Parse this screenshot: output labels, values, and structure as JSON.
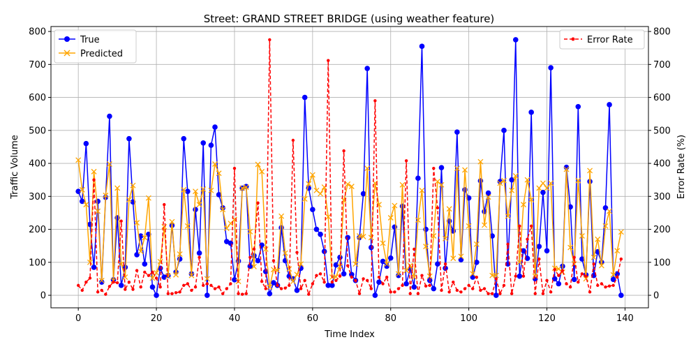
{
  "chart_data": {
    "type": "line",
    "title": "Street: GRAND STREET BRIDGE (using weather feature)",
    "xlabel": "Time Index",
    "ylabel": "Traffic Volume",
    "y2label": "Error Rate (%)",
    "xlim": [
      -7,
      146
    ],
    "ylim": [
      -38,
      815
    ],
    "y2lim": [
      -38,
      815
    ],
    "xticks": [
      0,
      20,
      40,
      60,
      80,
      100,
      120,
      140
    ],
    "yticks": [
      0,
      100,
      200,
      300,
      400,
      500,
      600,
      700,
      800
    ],
    "grid": true,
    "legend_left": "top-left",
    "legend_right": "top-right",
    "colors": {
      "true": "#0000ff",
      "predicted": "#ffa500",
      "error": "#ff0000"
    },
    "series": [
      {
        "name": "True",
        "axis": "left",
        "marker": "circle",
        "values": [
          315,
          285,
          460,
          215,
          85,
          285,
          40,
          297,
          543,
          47,
          235,
          30,
          85,
          475,
          283,
          123,
          180,
          95,
          185,
          25,
          0,
          82,
          55,
          60,
          212,
          70,
          110,
          475,
          315,
          65,
          260,
          128,
          462,
          0,
          455,
          510,
          305,
          265,
          163,
          158,
          47,
          104,
          325,
          330,
          88,
          120,
          105,
          152,
          72,
          5,
          38,
          30,
          205,
          105,
          58,
          50,
          15,
          82,
          600,
          325,
          260,
          200,
          185,
          133,
          30,
          30,
          92,
          115,
          65,
          175,
          63,
          45,
          175,
          308,
          688,
          145,
          0,
          40,
          103,
          88,
          113,
          207,
          60,
          270,
          35,
          80,
          25,
          355,
          755,
          200,
          45,
          20,
          95,
          387,
          82,
          225,
          195,
          495,
          108,
          320,
          295,
          55,
          100,
          347,
          254,
          310,
          180,
          0,
          345,
          500,
          95,
          350,
          775,
          58,
          135,
          112,
          555,
          50,
          148,
          312,
          135,
          690,
          50,
          35,
          88,
          388,
          268,
          48,
          572,
          110,
          62,
          345,
          60,
          132,
          100,
          265,
          578,
          48,
          65,
          0
        ]
      },
      {
        "name": "Predicted",
        "axis": "left",
        "marker": "x",
        "values": [
          410,
          320,
          275,
          100,
          375,
          255,
          45,
          303,
          398,
          45,
          325,
          95,
          55,
          290,
          333,
          220,
          133,
          175,
          295,
          52,
          68,
          102,
          208,
          58,
          223,
          62,
          125,
          320,
          210,
          60,
          315,
          275,
          322,
          50,
          318,
          398,
          370,
          260,
          203,
          218,
          230,
          42,
          325,
          328,
          193,
          87,
          397,
          375,
          140,
          25,
          78,
          75,
          240,
          128,
          80,
          42,
          63,
          95,
          292,
          338,
          365,
          318,
          308,
          328,
          238,
          55,
          56,
          88,
          288,
          337,
          330,
          95,
          180,
          178,
          385,
          175,
          340,
          275,
          158,
          95,
          235,
          272,
          65,
          335,
          75,
          90,
          55,
          228,
          318,
          148,
          58,
          180,
          345,
          335,
          172,
          262,
          112,
          385,
          118,
          380,
          210,
          65,
          155,
          405,
          213,
          298,
          60,
          60,
          340,
          348,
          240,
          318,
          362,
          100,
          275,
          350,
          290,
          58,
          325,
          340,
          325,
          340,
          82,
          80,
          70,
          382,
          145,
          95,
          348,
          180,
          50,
          378,
          115,
          170,
          90,
          210,
          255,
          62,
          135,
          192
        ]
      },
      {
        "name": "Error Rate",
        "axis": "right",
        "marker": "dot",
        "linestyle": "dashed",
        "values": [
          30,
          15,
          40,
          52,
          350,
          10,
          15,
          3,
          27,
          40,
          38,
          225,
          18,
          40,
          18,
          75,
          25,
          70,
          60,
          70,
          52,
          25,
          275,
          5,
          5,
          8,
          10,
          30,
          35,
          15,
          25,
          115,
          30,
          35,
          30,
          20,
          25,
          5,
          20,
          35,
          385,
          5,
          3,
          5,
          115,
          140,
          280,
          42,
          20,
          775,
          105,
          30,
          20,
          22,
          30,
          470,
          130,
          20,
          45,
          3,
          35,
          60,
          65,
          40,
          712,
          40,
          45,
          58,
          438,
          90,
          55,
          45,
          5,
          50,
          45,
          20,
          590,
          55,
          35,
          55,
          10,
          10,
          20,
          30,
          408,
          5,
          140,
          5,
          60,
          28,
          30,
          385,
          265,
          15,
          95,
          10,
          40,
          15,
          10,
          20,
          30,
          20,
          55,
          15,
          20,
          5,
          5,
          50,
          5,
          30,
          155,
          5,
          58,
          210,
          58,
          170,
          210,
          5,
          110,
          5,
          45,
          10,
          78,
          60,
          75,
          35,
          25,
          115,
          40,
          65,
          58,
          10,
          95,
          30,
          35,
          25,
          28,
          30,
          55,
          110
        ]
      }
    ]
  }
}
